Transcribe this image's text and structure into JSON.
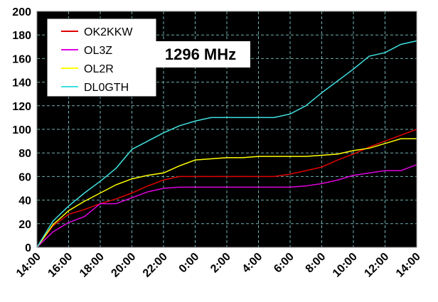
{
  "chart_data": {
    "type": "line",
    "title": "1296 MHz",
    "categories": [
      "14:00",
      null,
      "16:00",
      null,
      "18:00",
      null,
      "20:00",
      null,
      "22:00",
      null,
      "0:00",
      null,
      "2:00",
      null,
      "4:00",
      null,
      "6:00",
      null,
      "8:00",
      null,
      "10:00",
      null,
      "12:00",
      null,
      "14:00"
    ],
    "series": [
      {
        "name": "OK2KKW",
        "color": "#e00000",
        "values": [
          0,
          18,
          28,
          32,
          37,
          41,
          46,
          52,
          57,
          60,
          60,
          60,
          60,
          60,
          60,
          60,
          62,
          65,
          68,
          74,
          79,
          85,
          90,
          95,
          100
        ]
      },
      {
        "name": "OL3Z",
        "color": "#e000e0",
        "values": [
          0,
          13,
          21,
          26,
          37,
          37,
          42,
          47,
          50,
          51,
          51,
          51,
          51,
          51,
          51,
          51,
          51,
          52,
          54,
          57,
          61,
          63,
          65,
          65,
          70
        ]
      },
      {
        "name": "OL2R",
        "color": "#ffff00",
        "values": [
          0,
          19,
          31,
          39,
          46,
          53,
          58,
          61,
          63,
          69,
          74,
          75,
          76,
          76,
          77,
          77,
          77,
          77,
          78,
          79,
          82,
          84,
          88,
          92,
          92
        ]
      },
      {
        "name": "DL0GTH",
        "color": "#40e0e0",
        "values": [
          0,
          22,
          35,
          46,
          56,
          67,
          83,
          90,
          97,
          103,
          107,
          110,
          110,
          110,
          110,
          110,
          113,
          120,
          131,
          141,
          151,
          162,
          165,
          172,
          175
        ]
      }
    ],
    "ylim": [
      0,
      200
    ],
    "yticks": [
      0,
      20,
      40,
      60,
      80,
      100,
      120,
      140,
      160,
      180,
      200
    ],
    "grid": true,
    "legend": "upper left"
  }
}
